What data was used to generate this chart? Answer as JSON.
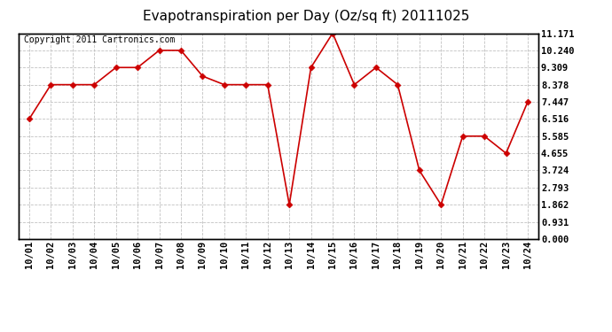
{
  "title": "Evapotranspiration per Day (Oz/sq ft) 20111025",
  "copyright": "Copyright 2011 Cartronics.com",
  "x_labels": [
    "10/01",
    "10/02",
    "10/03",
    "10/04",
    "10/05",
    "10/06",
    "10/07",
    "10/08",
    "10/09",
    "10/10",
    "10/11",
    "10/12",
    "10/13",
    "10/14",
    "10/15",
    "10/16",
    "10/17",
    "10/18",
    "10/19",
    "10/20",
    "10/21",
    "10/22",
    "10/23",
    "10/24"
  ],
  "y_values": [
    6.516,
    8.378,
    8.378,
    8.378,
    9.309,
    9.309,
    10.24,
    10.24,
    8.84,
    8.378,
    8.378,
    8.378,
    1.862,
    9.309,
    11.171,
    8.378,
    9.309,
    8.378,
    3.724,
    1.862,
    5.585,
    5.585,
    4.655,
    7.447
  ],
  "y_min": 0.0,
  "y_max": 11.171,
  "y_ticks": [
    0.0,
    0.931,
    1.862,
    2.793,
    3.724,
    4.655,
    5.585,
    6.516,
    7.447,
    8.378,
    9.309,
    10.24,
    11.171
  ],
  "line_color": "#cc0000",
  "marker_color": "#cc0000",
  "bg_color": "#ffffff",
  "grid_color": "#bbbbbb",
  "title_fontsize": 11,
  "copyright_fontsize": 7,
  "tick_fontsize": 7.5
}
